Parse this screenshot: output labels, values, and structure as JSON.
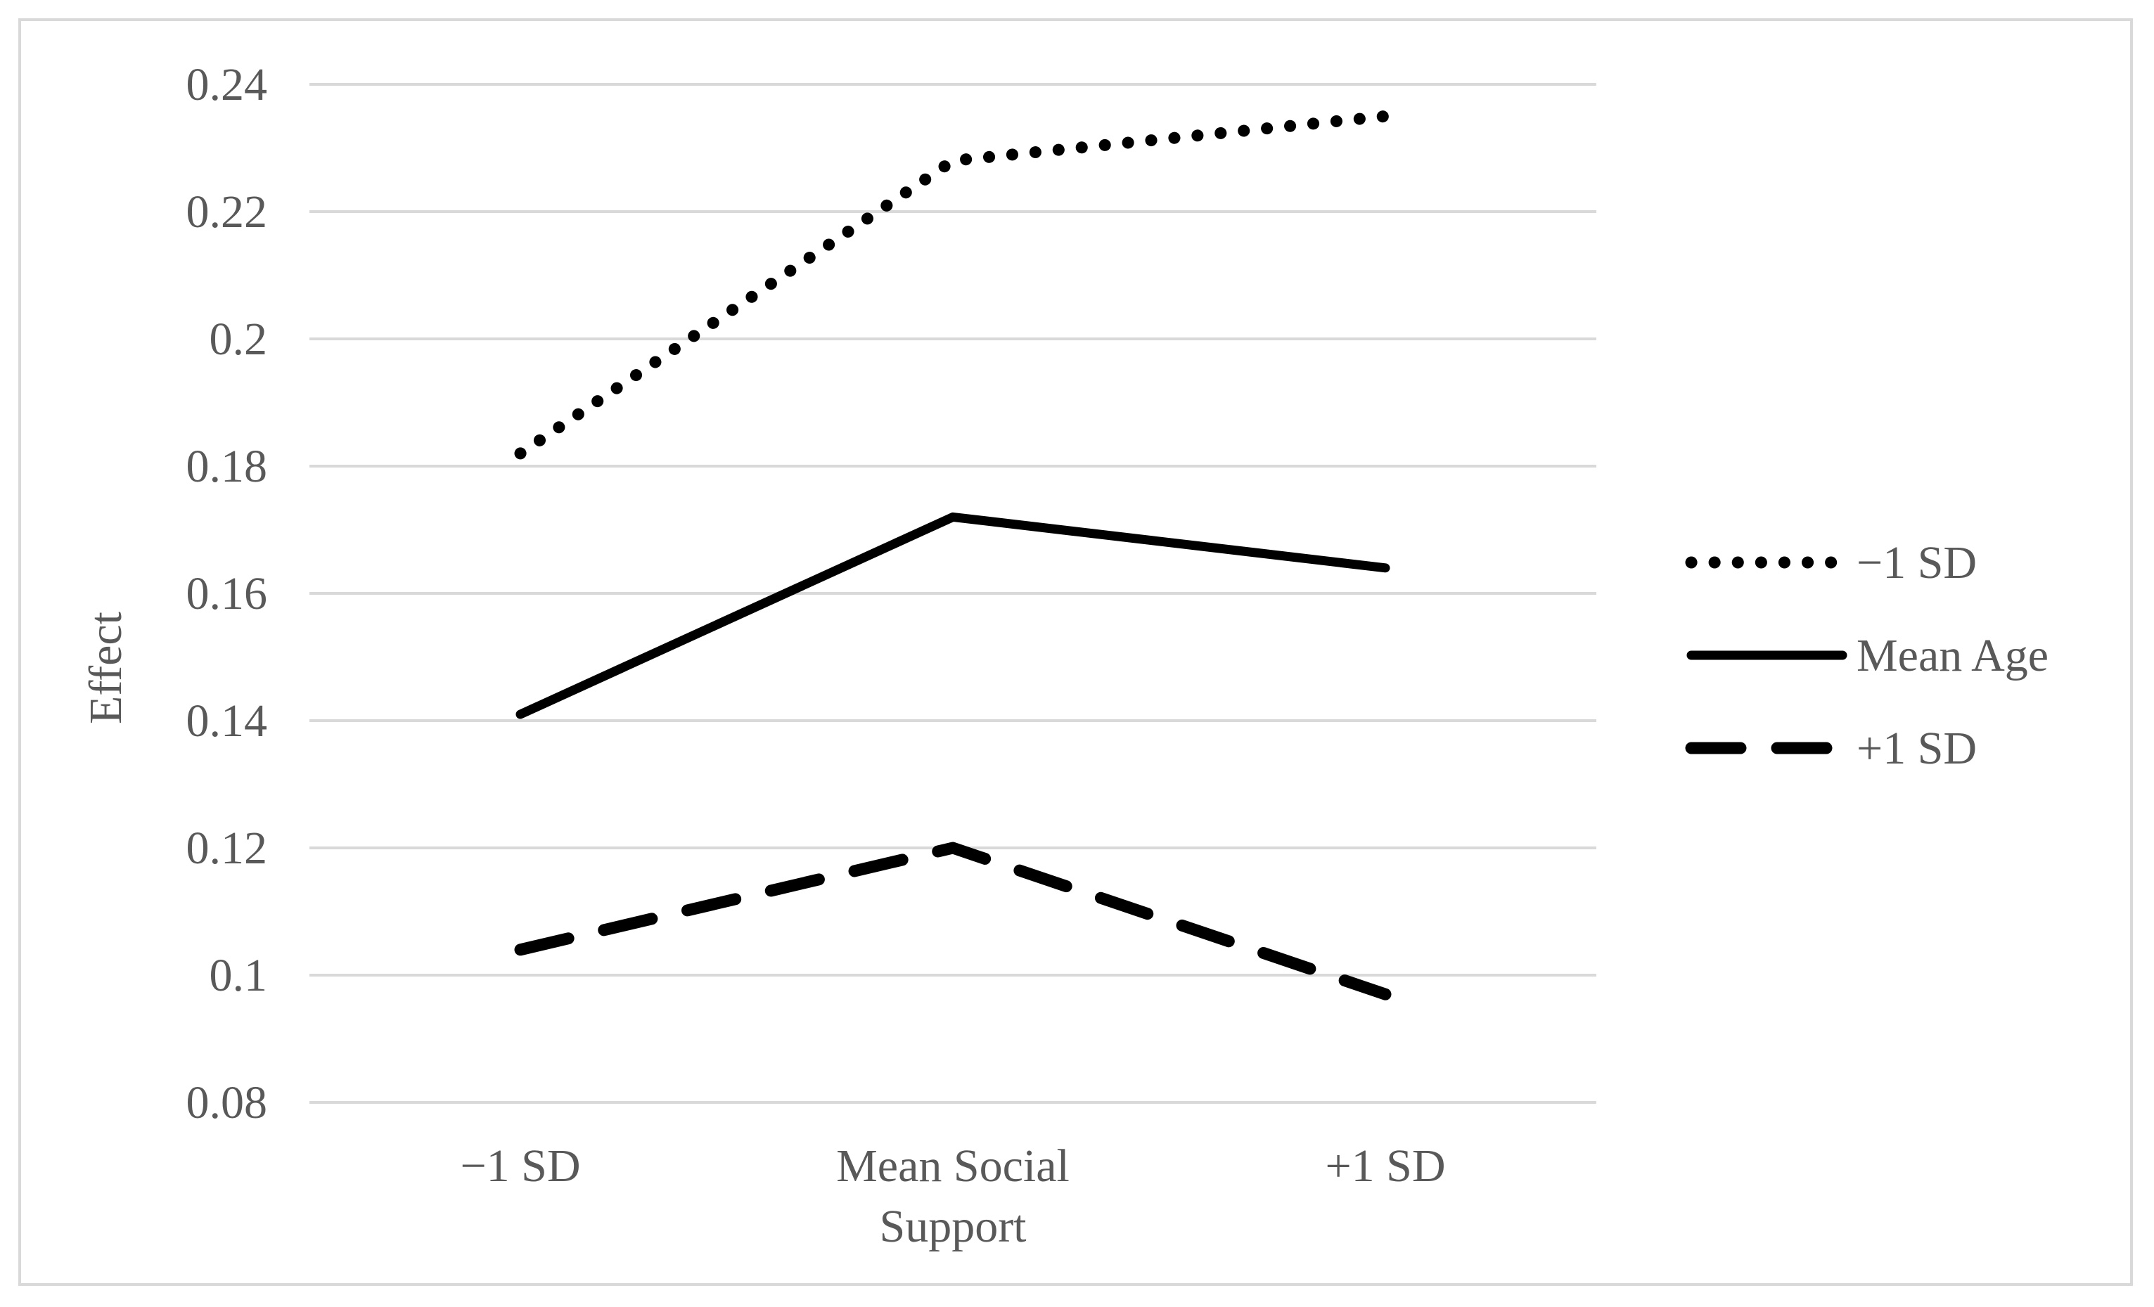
{
  "chart_data": {
    "type": "line",
    "title": "",
    "xlabel": "",
    "ylabel": "Effect",
    "categories": [
      "−1 SD",
      "Mean Social Support",
      "+1 SD"
    ],
    "category_lines": [
      [
        "−1 SD"
      ],
      [
        "Mean Social",
        "Support"
      ],
      [
        "+1 SD"
      ]
    ],
    "ylim": [
      0.08,
      0.24
    ],
    "yticks": [
      0.08,
      0.1,
      0.12,
      0.14,
      0.16,
      0.18,
      0.2,
      0.22,
      0.24
    ],
    "ytick_labels": [
      "0.08",
      "0.1",
      "0.12",
      "0.14",
      "0.16",
      "0.18",
      "0.2",
      "0.22",
      "0.24"
    ],
    "grid": true,
    "legend_position": "right",
    "series": [
      {
        "name": "−1 SD",
        "style": "dotted",
        "values": [
          0.182,
          0.228,
          0.235
        ]
      },
      {
        "name": "Mean Age",
        "style": "solid",
        "values": [
          0.141,
          0.172,
          0.164
        ]
      },
      {
        "name": "+1 SD",
        "style": "dashed",
        "values": [
          0.104,
          0.12,
          0.097
        ]
      }
    ],
    "colors": {
      "line": "#000000",
      "grid": "#d9d9d9",
      "text": "#595959"
    }
  }
}
